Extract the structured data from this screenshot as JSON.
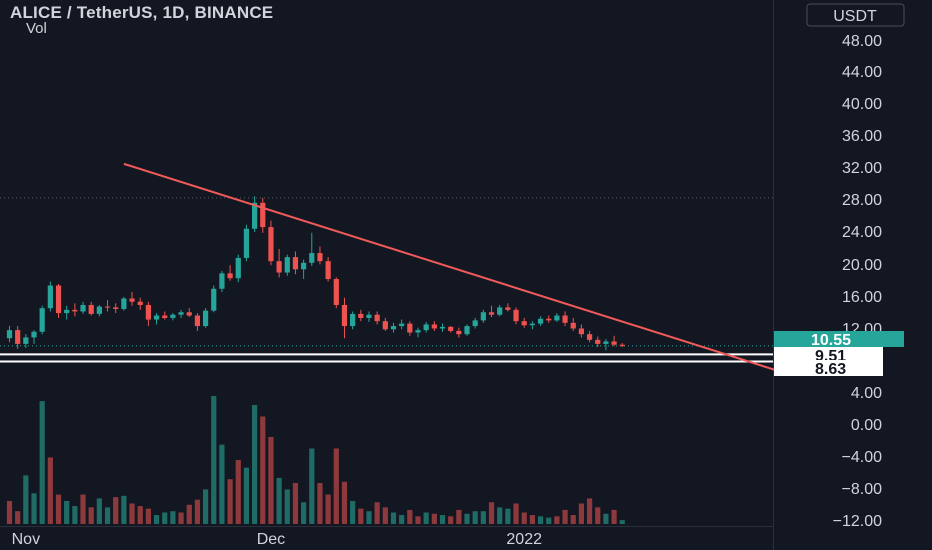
{
  "header": {
    "title": "ALICE / TetherUS, 1D, BINANCE",
    "volume_label": "Vol",
    "currency_button": "USDT"
  },
  "colors": {
    "background": "#131722",
    "up": "#26a69a",
    "down": "#ef5350",
    "vol_up": "#1f6b66",
    "vol_down": "#8e3a3d",
    "trendline": "#f05a5a",
    "current_price_badge": "#26a69a"
  },
  "chart_data": {
    "type": "candlestick",
    "symbol": "ALICE / TetherUS",
    "interval": "1D",
    "exchange": "BINANCE",
    "y_ticks": [
      "48.00",
      "44.00",
      "40.00",
      "36.00",
      "32.00",
      "28.00",
      "24.00",
      "20.00",
      "16.00",
      "12.00",
      "4.00",
      "0.00",
      "−4.00",
      "−8.00",
      "−12.00"
    ],
    "x_ticks": [
      {
        "label": "Nov",
        "day": 3
      },
      {
        "label": "Dec",
        "day": 33
      },
      {
        "label": "2022",
        "day": 64
      }
    ],
    "price_labels": [
      {
        "text": "10.55",
        "value": 10.55,
        "style": "current"
      },
      {
        "text": "9.51",
        "value": 9.51,
        "style": "line"
      },
      {
        "text": "8.63",
        "value": 8.63,
        "style": "line"
      }
    ],
    "ylim": [
      -13,
      50
    ],
    "dotted_level": 28.8,
    "horizontal_levels": [
      9.51,
      8.63
    ],
    "trendline": {
      "start": {
        "day": 15,
        "price": 33.0
      },
      "end": {
        "day": 95,
        "price": 7.5
      }
    },
    "candles": [
      [
        1,
        11.5,
        13.0,
        11.0,
        12.5
      ],
      [
        2,
        12.5,
        13.0,
        10.2,
        10.8
      ],
      [
        3,
        10.8,
        12.0,
        10.3,
        11.6
      ],
      [
        4,
        11.6,
        12.5,
        10.8,
        12.3
      ],
      [
        5,
        12.3,
        15.5,
        12.0,
        15.2
      ],
      [
        6,
        15.2,
        18.5,
        14.8,
        18.0
      ],
      [
        7,
        18.0,
        18.2,
        14.0,
        14.6
      ],
      [
        8,
        14.6,
        15.5,
        13.8,
        15.0
      ],
      [
        9,
        15.0,
        15.8,
        14.2,
        14.8
      ],
      [
        10,
        14.8,
        16.0,
        14.5,
        15.6
      ],
      [
        11,
        15.6,
        16.0,
        14.3,
        14.5
      ],
      [
        12,
        14.5,
        15.6,
        14.2,
        15.4
      ],
      [
        13,
        15.4,
        16.2,
        14.8,
        15.3
      ],
      [
        14,
        15.3,
        15.8,
        14.6,
        15.1
      ],
      [
        15,
        15.1,
        16.6,
        14.9,
        16.4
      ],
      [
        16,
        16.4,
        17.2,
        15.5,
        16.0
      ],
      [
        17,
        16.0,
        16.5,
        15.0,
        15.6
      ],
      [
        18,
        15.6,
        16.0,
        13.0,
        13.8
      ],
      [
        19,
        13.8,
        14.6,
        13.2,
        14.3
      ],
      [
        20,
        14.3,
        14.8,
        13.8,
        14.0
      ],
      [
        21,
        14.0,
        14.6,
        13.7,
        14.4
      ],
      [
        22,
        14.4,
        15.0,
        14.0,
        14.7
      ],
      [
        23,
        14.7,
        15.2,
        14.1,
        14.3
      ],
      [
        24,
        14.3,
        14.6,
        12.4,
        13.0
      ],
      [
        25,
        13.0,
        15.2,
        12.8,
        14.9
      ],
      [
        26,
        14.9,
        18.0,
        14.7,
        17.6
      ],
      [
        27,
        17.6,
        19.8,
        17.2,
        19.5
      ],
      [
        28,
        19.5,
        20.5,
        18.6,
        18.9
      ],
      [
        29,
        18.9,
        21.8,
        18.4,
        21.4
      ],
      [
        30,
        21.4,
        25.5,
        21.0,
        25.0
      ],
      [
        31,
        25.0,
        29.0,
        24.6,
        28.2
      ],
      [
        32,
        28.2,
        28.8,
        24.5,
        25.2
      ],
      [
        33,
        25.2,
        26.0,
        20.5,
        21.0
      ],
      [
        34,
        21.0,
        22.5,
        19.0,
        19.6
      ],
      [
        35,
        19.6,
        21.8,
        19.2,
        21.5
      ],
      [
        36,
        21.5,
        22.2,
        19.4,
        20.0
      ],
      [
        37,
        20.0,
        21.2,
        18.8,
        20.8
      ],
      [
        38,
        20.8,
        24.5,
        20.4,
        22.0
      ],
      [
        39,
        22.0,
        22.8,
        20.6,
        21.0
      ],
      [
        40,
        21.0,
        21.5,
        18.5,
        18.8
      ],
      [
        41,
        18.8,
        19.0,
        15.2,
        15.6
      ],
      [
        42,
        15.6,
        16.5,
        11.5,
        13.0
      ],
      [
        43,
        13.0,
        14.8,
        12.6,
        14.5
      ],
      [
        44,
        14.5,
        15.0,
        13.6,
        14.0
      ],
      [
        45,
        14.0,
        14.8,
        13.5,
        14.4
      ],
      [
        46,
        14.4,
        14.8,
        13.2,
        13.6
      ],
      [
        47,
        13.6,
        14.0,
        12.4,
        12.6
      ],
      [
        48,
        12.6,
        13.4,
        12.2,
        13.0
      ],
      [
        49,
        13.0,
        13.8,
        12.6,
        13.3
      ],
      [
        50,
        13.3,
        13.6,
        11.8,
        12.2
      ],
      [
        51,
        12.2,
        12.8,
        11.6,
        12.5
      ],
      [
        52,
        12.5,
        13.5,
        12.2,
        13.2
      ],
      [
        53,
        13.2,
        13.6,
        12.4,
        12.7
      ],
      [
        54,
        12.7,
        13.3,
        12.3,
        12.9
      ],
      [
        55,
        12.9,
        13.0,
        12.2,
        12.4
      ],
      [
        56,
        12.4,
        12.8,
        11.6,
        12.0
      ],
      [
        57,
        12.0,
        13.2,
        11.8,
        13.0
      ],
      [
        58,
        13.0,
        14.0,
        12.7,
        13.7
      ],
      [
        59,
        13.7,
        15.0,
        13.4,
        14.7
      ],
      [
        60,
        14.7,
        15.5,
        14.1,
        14.4
      ],
      [
        61,
        14.4,
        15.6,
        14.2,
        15.3
      ],
      [
        62,
        15.3,
        15.8,
        14.8,
        15.0
      ],
      [
        63,
        15.0,
        15.3,
        13.2,
        13.6
      ],
      [
        64,
        13.6,
        14.0,
        12.8,
        13.1
      ],
      [
        65,
        13.1,
        13.6,
        12.6,
        13.3
      ],
      [
        66,
        13.3,
        14.2,
        13.0,
        13.9
      ],
      [
        67,
        13.9,
        14.3,
        13.4,
        13.7
      ],
      [
        68,
        13.7,
        14.6,
        13.5,
        14.3
      ],
      [
        69,
        14.3,
        14.8,
        13.0,
        13.4
      ],
      [
        70,
        13.4,
        14.0,
        12.4,
        12.7
      ],
      [
        71,
        12.7,
        13.2,
        11.6,
        12.0
      ],
      [
        72,
        12.0,
        12.4,
        11.0,
        11.3
      ],
      [
        73,
        11.3,
        11.7,
        10.4,
        10.8
      ],
      [
        74,
        10.8,
        11.4,
        10.0,
        11.1
      ],
      [
        75,
        11.1,
        11.8,
        10.5,
        10.7
      ],
      [
        76,
        10.7,
        10.9,
        10.4,
        10.55
      ]
    ],
    "volumes": [
      [
        1,
        0.18,
        "down"
      ],
      [
        2,
        0.1,
        "down"
      ],
      [
        3,
        0.38,
        "up"
      ],
      [
        4,
        0.24,
        "up"
      ],
      [
        5,
        0.96,
        "up"
      ],
      [
        6,
        0.52,
        "down"
      ],
      [
        7,
        0.23,
        "down"
      ],
      [
        8,
        0.18,
        "up"
      ],
      [
        9,
        0.14,
        "up"
      ],
      [
        10,
        0.23,
        "down"
      ],
      [
        11,
        0.13,
        "down"
      ],
      [
        12,
        0.2,
        "up"
      ],
      [
        13,
        0.13,
        "up"
      ],
      [
        14,
        0.21,
        "down"
      ],
      [
        15,
        0.22,
        "up"
      ],
      [
        16,
        0.16,
        "down"
      ],
      [
        17,
        0.14,
        "down"
      ],
      [
        18,
        0.12,
        "down"
      ],
      [
        19,
        0.07,
        "up"
      ],
      [
        20,
        0.09,
        "up"
      ],
      [
        21,
        0.1,
        "up"
      ],
      [
        22,
        0.09,
        "down"
      ],
      [
        23,
        0.15,
        "down"
      ],
      [
        24,
        0.19,
        "down"
      ],
      [
        25,
        0.27,
        "up"
      ],
      [
        26,
        1.0,
        "up"
      ],
      [
        27,
        0.62,
        "up"
      ],
      [
        28,
        0.35,
        "down"
      ],
      [
        29,
        0.5,
        "down"
      ],
      [
        30,
        0.44,
        "up"
      ],
      [
        31,
        0.93,
        "up"
      ],
      [
        32,
        0.84,
        "down"
      ],
      [
        33,
        0.68,
        "down"
      ],
      [
        34,
        0.36,
        "up"
      ],
      [
        35,
        0.27,
        "up"
      ],
      [
        36,
        0.32,
        "down"
      ],
      [
        37,
        0.17,
        "up"
      ],
      [
        38,
        0.59,
        "up"
      ],
      [
        39,
        0.32,
        "down"
      ],
      [
        40,
        0.23,
        "down"
      ],
      [
        41,
        0.59,
        "down"
      ],
      [
        42,
        0.33,
        "down"
      ],
      [
        43,
        0.18,
        "up"
      ],
      [
        44,
        0.12,
        "down"
      ],
      [
        45,
        0.1,
        "up"
      ],
      [
        46,
        0.17,
        "down"
      ],
      [
        47,
        0.13,
        "down"
      ],
      [
        48,
        0.09,
        "up"
      ],
      [
        49,
        0.07,
        "up"
      ],
      [
        50,
        0.11,
        "down"
      ],
      [
        51,
        0.06,
        "down"
      ],
      [
        52,
        0.09,
        "up"
      ],
      [
        53,
        0.08,
        "down"
      ],
      [
        54,
        0.07,
        "up"
      ],
      [
        55,
        0.06,
        "down"
      ],
      [
        56,
        0.11,
        "down"
      ],
      [
        57,
        0.08,
        "up"
      ],
      [
        58,
        0.1,
        "up"
      ],
      [
        59,
        0.1,
        "up"
      ],
      [
        60,
        0.17,
        "down"
      ],
      [
        61,
        0.13,
        "up"
      ],
      [
        62,
        0.12,
        "up"
      ],
      [
        63,
        0.16,
        "down"
      ],
      [
        64,
        0.09,
        "down"
      ],
      [
        65,
        0.07,
        "down"
      ],
      [
        66,
        0.06,
        "up"
      ],
      [
        67,
        0.05,
        "up"
      ],
      [
        68,
        0.06,
        "down"
      ],
      [
        69,
        0.11,
        "down"
      ],
      [
        70,
        0.07,
        "down"
      ],
      [
        71,
        0.16,
        "down"
      ],
      [
        72,
        0.2,
        "down"
      ],
      [
        73,
        0.13,
        "down"
      ],
      [
        74,
        0.08,
        "up"
      ],
      [
        75,
        0.11,
        "down"
      ],
      [
        76,
        0.03,
        "up"
      ]
    ]
  }
}
